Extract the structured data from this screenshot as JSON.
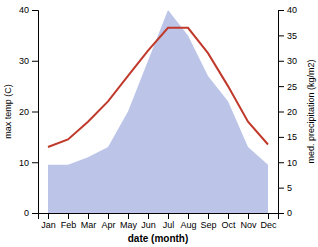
{
  "chart_data": {
    "type": "line",
    "categories": [
      "Jan",
      "Feb",
      "Mar",
      "Apr",
      "May",
      "Jun",
      "Jul",
      "Aug",
      "Sep",
      "Oct",
      "Nov",
      "Dec"
    ],
    "xlabel": "date (month)",
    "ylabel": "max temp (C)",
    "y2label": "med. precipitation (kg/m2)",
    "ylim": [
      0,
      40
    ],
    "yticks": [
      0,
      10,
      20,
      30,
      40
    ],
    "y2lim": [
      0,
      40
    ],
    "y2ticks": [
      0,
      5,
      10,
      15,
      20,
      25,
      30,
      35,
      40
    ],
    "grid": false,
    "series": [
      {
        "type": "area",
        "axis": "y2",
        "color": "#bcc5e8",
        "values": [
          9.5,
          9.5,
          11.0,
          13.0,
          20.0,
          30.0,
          40.0,
          35.0,
          27.0,
          22.0,
          13.0,
          9.5
        ]
      },
      {
        "type": "line",
        "color": "#c0392b",
        "values": [
          13.0,
          14.5,
          18.0,
          22.0,
          27.0,
          32.0,
          36.5,
          36.5,
          31.5,
          25.0,
          18.0,
          13.5
        ]
      }
    ]
  }
}
